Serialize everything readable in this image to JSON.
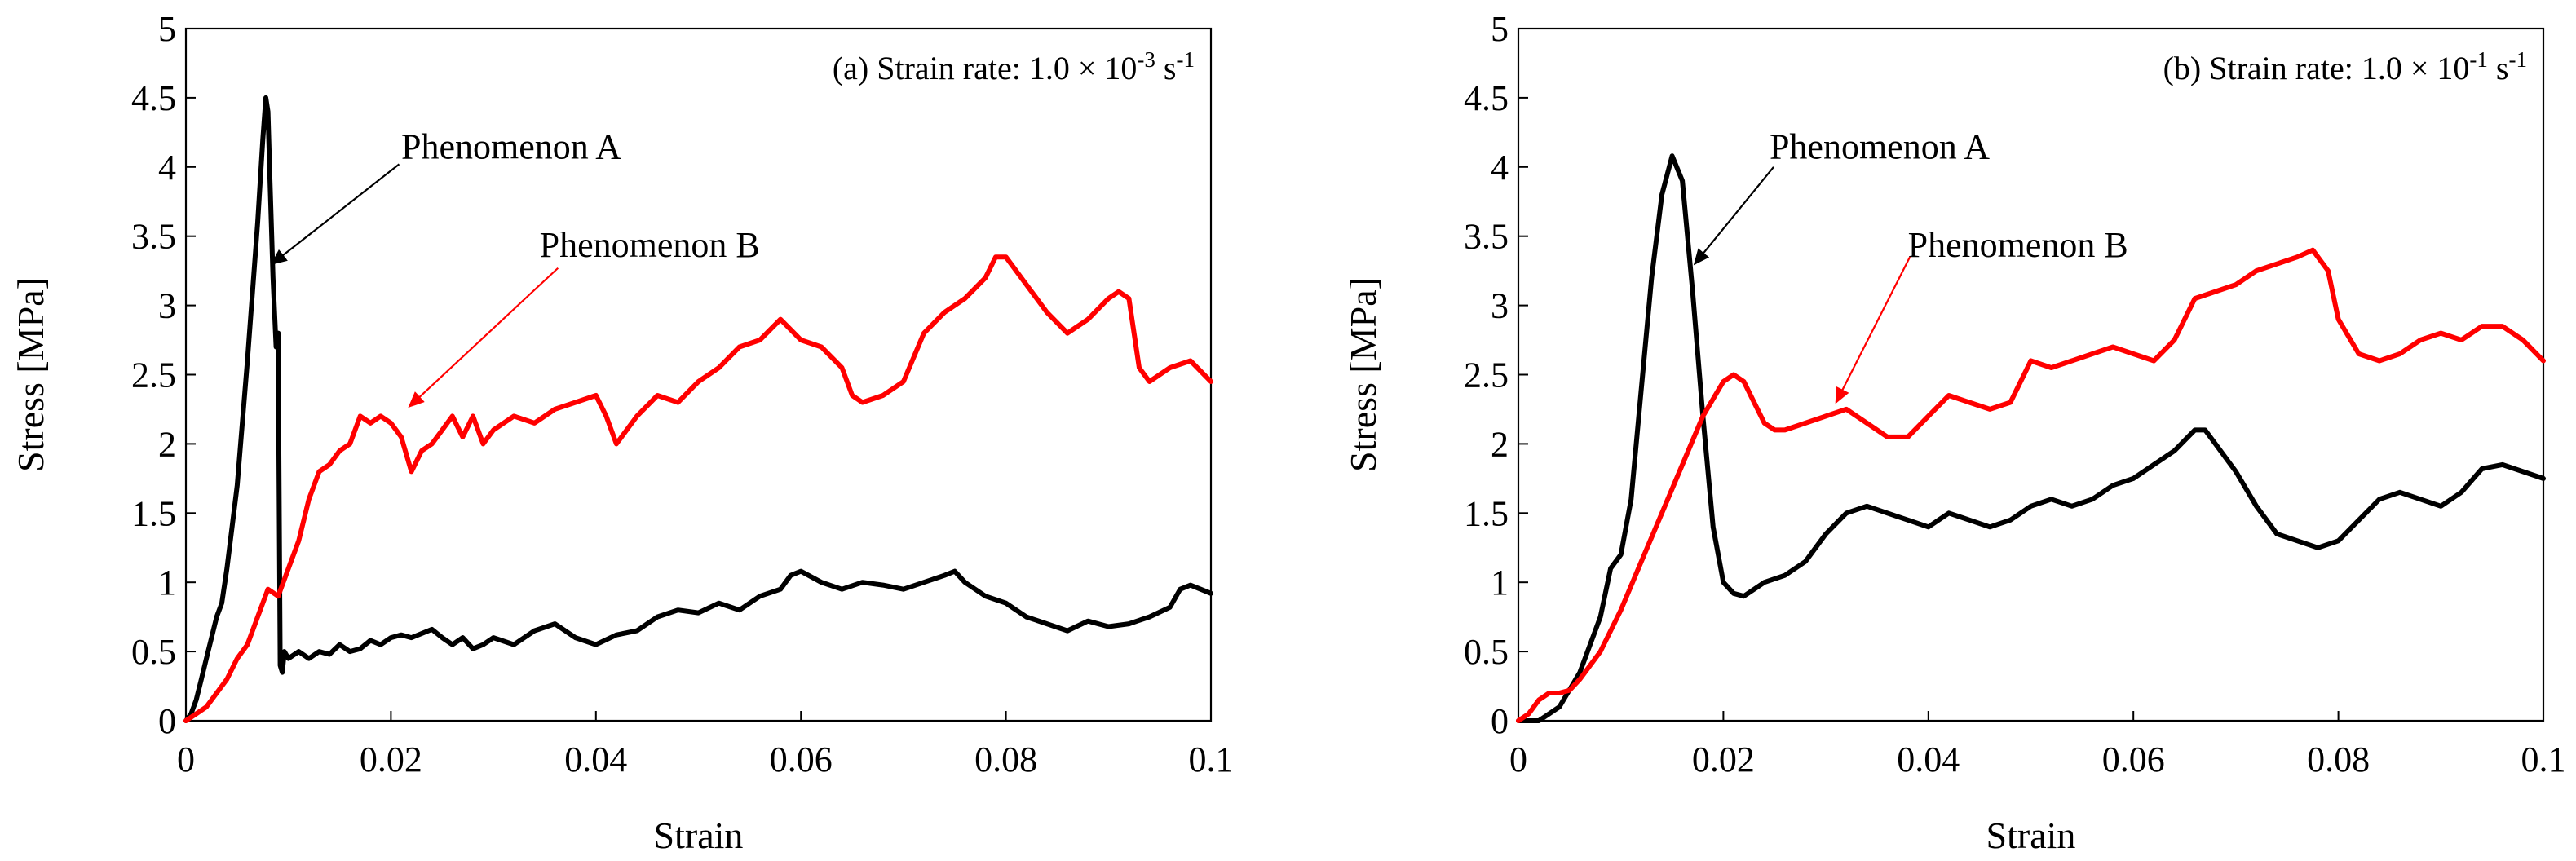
{
  "figure_caption": "",
  "colors": {
    "series_black": "#000000",
    "series_red": "#ff0000",
    "frame": "#000000",
    "background": "#ffffff"
  },
  "chart_data": [
    {
      "type": "line",
      "panel": "a",
      "title": {
        "prefix": "(a) Strain rate: 1.0 × 10",
        "exp": "-3",
        "unit": " s",
        "unit_exp": "-1"
      },
      "xlabel": "Strain",
      "ylabel": "Stress [MPa]",
      "xlim": [
        0,
        0.1
      ],
      "ylim": [
        0,
        5
      ],
      "xticks": [
        0,
        0.02,
        0.04,
        0.06,
        0.08,
        0.1
      ],
      "xtick_labels": [
        "0",
        "0.02",
        "0.04",
        "0.06",
        "0.08",
        "0.1"
      ],
      "yticks": [
        0,
        0.5,
        1,
        1.5,
        2,
        2.5,
        3,
        3.5,
        4,
        4.5,
        5
      ],
      "ytick_labels": [
        "0",
        "0.5",
        "1",
        "1.5",
        "2",
        "2.5",
        "3",
        "3.5",
        "4",
        "4.5",
        "5"
      ],
      "grid": false,
      "legend": "none",
      "series": [
        {
          "name": "Phenomenon A (black)",
          "color": "#000000",
          "x": [
            0,
            0.0005,
            0.001,
            0.0015,
            0.002,
            0.0025,
            0.003,
            0.0035,
            0.004,
            0.005,
            0.006,
            0.007,
            0.0075,
            0.0078,
            0.008,
            0.0082,
            0.0085,
            0.0088,
            0.009,
            0.0092,
            0.0094,
            0.0096,
            0.01,
            0.011,
            0.012,
            0.013,
            0.014,
            0.015,
            0.016,
            0.017,
            0.018,
            0.019,
            0.02,
            0.021,
            0.022,
            0.023,
            0.024,
            0.025,
            0.026,
            0.027,
            0.028,
            0.029,
            0.03,
            0.032,
            0.034,
            0.036,
            0.038,
            0.04,
            0.042,
            0.044,
            0.046,
            0.048,
            0.05,
            0.052,
            0.054,
            0.056,
            0.058,
            0.059,
            0.06,
            0.062,
            0.064,
            0.066,
            0.068,
            0.07,
            0.072,
            0.074,
            0.075,
            0.076,
            0.078,
            0.08,
            0.082,
            0.084,
            0.086,
            0.088,
            0.09,
            0.092,
            0.094,
            0.096,
            0.097,
            0.098,
            0.099,
            0.1
          ],
          "y": [
            0,
            0.05,
            0.15,
            0.3,
            0.45,
            0.6,
            0.75,
            0.85,
            1.1,
            1.7,
            2.6,
            3.6,
            4.2,
            4.5,
            4.4,
            3.9,
            3.2,
            2.7,
            2.8,
            0.4,
            0.35,
            0.5,
            0.45,
            0.5,
            0.45,
            0.5,
            0.48,
            0.55,
            0.5,
            0.52,
            0.58,
            0.55,
            0.6,
            0.62,
            0.6,
            0.63,
            0.66,
            0.6,
            0.55,
            0.6,
            0.52,
            0.55,
            0.6,
            0.55,
            0.65,
            0.7,
            0.6,
            0.55,
            0.62,
            0.65,
            0.75,
            0.8,
            0.78,
            0.85,
            0.8,
            0.9,
            0.95,
            1.05,
            1.08,
            1.0,
            0.95,
            1.0,
            0.98,
            0.95,
            1.0,
            1.05,
            1.08,
            1.0,
            0.9,
            0.85,
            0.75,
            0.7,
            0.65,
            0.72,
            0.68,
            0.7,
            0.75,
            0.82,
            0.95,
            0.98,
            0.95,
            0.92
          ]
        },
        {
          "name": "Phenomenon B (red)",
          "color": "#ff0000",
          "x": [
            0,
            0.001,
            0.002,
            0.003,
            0.004,
            0.005,
            0.006,
            0.007,
            0.008,
            0.009,
            0.01,
            0.011,
            0.012,
            0.013,
            0.014,
            0.015,
            0.016,
            0.017,
            0.018,
            0.019,
            0.02,
            0.021,
            0.022,
            0.023,
            0.024,
            0.025,
            0.026,
            0.027,
            0.028,
            0.029,
            0.03,
            0.032,
            0.034,
            0.036,
            0.038,
            0.04,
            0.041,
            0.042,
            0.043,
            0.044,
            0.046,
            0.048,
            0.05,
            0.052,
            0.054,
            0.056,
            0.058,
            0.06,
            0.062,
            0.064,
            0.065,
            0.066,
            0.068,
            0.07,
            0.072,
            0.074,
            0.076,
            0.078,
            0.079,
            0.08,
            0.082,
            0.084,
            0.086,
            0.088,
            0.09,
            0.091,
            0.092,
            0.093,
            0.094,
            0.096,
            0.098,
            0.1
          ],
          "y": [
            0,
            0.05,
            0.1,
            0.2,
            0.3,
            0.45,
            0.55,
            0.75,
            0.95,
            0.9,
            1.1,
            1.3,
            1.6,
            1.8,
            1.85,
            1.95,
            2.0,
            2.2,
            2.15,
            2.2,
            2.15,
            2.05,
            1.8,
            1.95,
            2.0,
            2.1,
            2.2,
            2.05,
            2.2,
            2.0,
            2.1,
            2.2,
            2.15,
            2.25,
            2.3,
            2.35,
            2.2,
            2.0,
            2.1,
            2.2,
            2.35,
            2.3,
            2.45,
            2.55,
            2.7,
            2.75,
            2.9,
            2.75,
            2.7,
            2.55,
            2.35,
            2.3,
            2.35,
            2.45,
            2.8,
            2.95,
            3.05,
            3.2,
            3.35,
            3.35,
            3.15,
            2.95,
            2.8,
            2.9,
            3.05,
            3.1,
            3.05,
            2.55,
            2.45,
            2.55,
            2.6,
            2.45
          ]
        }
      ],
      "annotations": [
        {
          "text": "Phenomenon A",
          "color": "#000000",
          "label_at": [
            0.021,
            4.06
          ],
          "arrow_from": [
            0.0208,
            4.02
          ],
          "arrow_to": [
            0.0084,
            3.3
          ]
        },
        {
          "text": "Phenomenon B",
          "color": "#ff0000",
          "label_at": [
            0.0345,
            3.35
          ],
          "arrow_from": [
            0.0363,
            3.27
          ],
          "arrow_to": [
            0.0218,
            2.27
          ]
        }
      ]
    },
    {
      "type": "line",
      "panel": "b",
      "title": {
        "prefix": "(b) Strain rate: 1.0 × 10",
        "exp": "-1",
        "unit": " s",
        "unit_exp": "-1"
      },
      "xlabel": "Strain",
      "ylabel": "Stress [MPa]",
      "xlim": [
        0,
        0.1
      ],
      "ylim": [
        0,
        5
      ],
      "xticks": [
        0,
        0.02,
        0.04,
        0.06,
        0.08,
        0.1
      ],
      "xtick_labels": [
        "0",
        "0.02",
        "0.04",
        "0.06",
        "0.08",
        "0.1"
      ],
      "yticks": [
        0,
        0.5,
        1,
        1.5,
        2,
        2.5,
        3,
        3.5,
        4,
        4.5,
        5
      ],
      "ytick_labels": [
        "0",
        "0.5",
        "1",
        "1.5",
        "2",
        "2.5",
        "3",
        "3.5",
        "4",
        "4.5",
        "5"
      ],
      "grid": false,
      "legend": "none",
      "series": [
        {
          "name": "Phenomenon A (black)",
          "color": "#000000",
          "x": [
            0,
            0.002,
            0.004,
            0.006,
            0.008,
            0.009,
            0.01,
            0.011,
            0.012,
            0.013,
            0.014,
            0.015,
            0.016,
            0.017,
            0.018,
            0.019,
            0.02,
            0.021,
            0.022,
            0.024,
            0.026,
            0.028,
            0.03,
            0.032,
            0.034,
            0.036,
            0.038,
            0.04,
            0.042,
            0.044,
            0.046,
            0.048,
            0.05,
            0.052,
            0.054,
            0.056,
            0.058,
            0.06,
            0.062,
            0.064,
            0.066,
            0.067,
            0.068,
            0.07,
            0.072,
            0.074,
            0.076,
            0.078,
            0.08,
            0.082,
            0.084,
            0.086,
            0.088,
            0.09,
            0.092,
            0.094,
            0.096,
            0.098,
            0.1
          ],
          "y": [
            0,
            0,
            0.1,
            0.35,
            0.75,
            1.1,
            1.2,
            1.6,
            2.4,
            3.2,
            3.8,
            4.08,
            3.9,
            3.1,
            2.2,
            1.4,
            1.0,
            0.92,
            0.9,
            1.0,
            1.05,
            1.15,
            1.35,
            1.5,
            1.55,
            1.5,
            1.45,
            1.4,
            1.5,
            1.45,
            1.4,
            1.45,
            1.55,
            1.6,
            1.55,
            1.6,
            1.7,
            1.75,
            1.85,
            1.95,
            2.1,
            2.1,
            2.0,
            1.8,
            1.55,
            1.35,
            1.3,
            1.25,
            1.3,
            1.45,
            1.6,
            1.65,
            1.6,
            1.55,
            1.65,
            1.82,
            1.85,
            1.8,
            1.75
          ]
        },
        {
          "name": "Phenomenon B (red)",
          "color": "#ff0000",
          "x": [
            0,
            0.001,
            0.002,
            0.003,
            0.004,
            0.005,
            0.006,
            0.008,
            0.01,
            0.012,
            0.014,
            0.016,
            0.018,
            0.02,
            0.021,
            0.022,
            0.023,
            0.024,
            0.025,
            0.026,
            0.028,
            0.03,
            0.032,
            0.034,
            0.036,
            0.038,
            0.04,
            0.042,
            0.044,
            0.046,
            0.048,
            0.05,
            0.052,
            0.054,
            0.056,
            0.058,
            0.06,
            0.062,
            0.064,
            0.066,
            0.068,
            0.07,
            0.072,
            0.074,
            0.076,
            0.0775,
            0.079,
            0.08,
            0.082,
            0.084,
            0.086,
            0.088,
            0.09,
            0.092,
            0.094,
            0.096,
            0.098,
            0.1
          ],
          "y": [
            0,
            0.05,
            0.15,
            0.2,
            0.2,
            0.22,
            0.3,
            0.5,
            0.8,
            1.15,
            1.5,
            1.85,
            2.2,
            2.45,
            2.5,
            2.45,
            2.3,
            2.15,
            2.1,
            2.1,
            2.15,
            2.2,
            2.25,
            2.15,
            2.05,
            2.05,
            2.2,
            2.35,
            2.3,
            2.25,
            2.3,
            2.6,
            2.55,
            2.6,
            2.65,
            2.7,
            2.65,
            2.6,
            2.75,
            3.05,
            3.1,
            3.15,
            3.25,
            3.3,
            3.35,
            3.4,
            3.25,
            2.9,
            2.65,
            2.6,
            2.65,
            2.75,
            2.8,
            2.75,
            2.85,
            2.85,
            2.75,
            2.6
          ]
        }
      ],
      "annotations": [
        {
          "text": "Phenomenon A",
          "color": "#000000",
          "label_at": [
            0.0245,
            4.06
          ],
          "arrow_from": [
            0.0249,
            4.0
          ],
          "arrow_to": [
            0.0172,
            3.3
          ]
        },
        {
          "text": "Phenomenon B",
          "color": "#ff0000",
          "label_at": [
            0.038,
            3.35
          ],
          "arrow_from": [
            0.0382,
            3.35
          ],
          "arrow_to": [
            0.031,
            2.3
          ]
        }
      ]
    }
  ]
}
